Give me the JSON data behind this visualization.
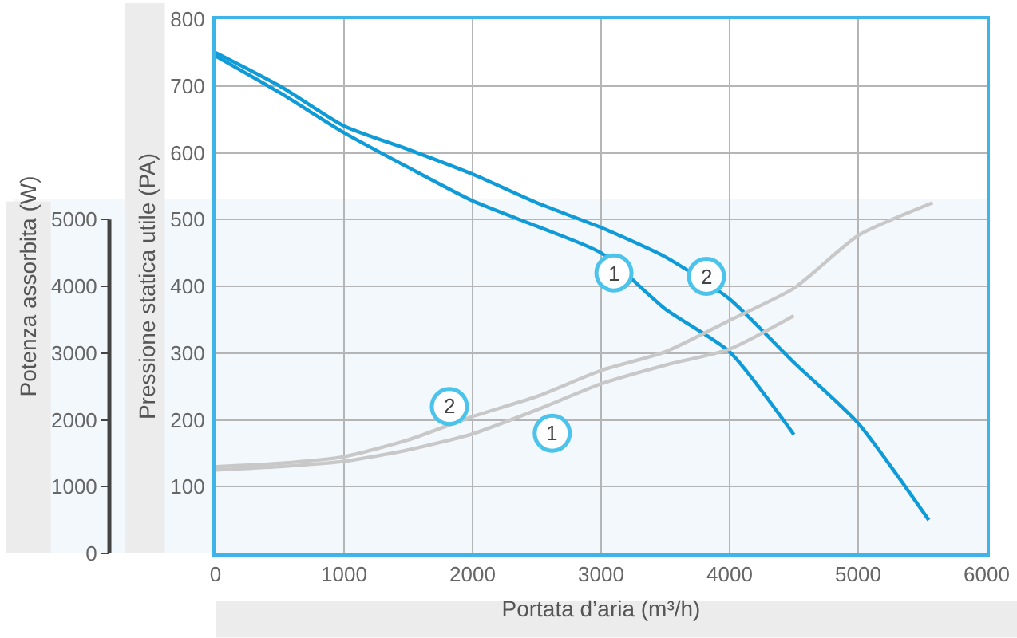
{
  "chart_data": {
    "type": "line",
    "xlabel": "Portata d’aria (m³/h)",
    "ylabel": "Pressione statica utile (PA)",
    "y2label": "Potenza assorbita (W)",
    "series": [
      {
        "color": "#0f9bd7",
        "x": [
          0,
          500,
          1000,
          1500,
          2000,
          2500,
          3000,
          3500,
          4000,
          4500
        ],
        "values": [
          745,
          690,
          630,
          578,
          528,
          490,
          450,
          366,
          302,
          178
        ]
      },
      {
        "color": "#0f9bd7",
        "x": [
          0,
          500,
          1000,
          1500,
          2000,
          2500,
          3000,
          3500,
          4000,
          4500,
          5000,
          5550
        ],
        "values": [
          750,
          700,
          640,
          605,
          568,
          525,
          488,
          444,
          381,
          286,
          195,
          50
        ]
      },
      {
        "color": "#c8c8c8",
        "axis": "y2",
        "x": [
          0,
          500,
          1000,
          1500,
          2000,
          2500,
          3000,
          3500,
          4000,
          4500,
          5000,
          5580
        ],
        "values": [
          1300,
          1350,
          1450,
          1700,
          2050,
          2350,
          2740,
          3020,
          3490,
          3970,
          4760,
          5250
        ]
      },
      {
        "color": "#c8c8c8",
        "axis": "y2",
        "x": [
          0,
          500,
          1000,
          1500,
          2000,
          2500,
          3000,
          3500,
          4000,
          4500
        ],
        "values": [
          1250,
          1300,
          1380,
          1550,
          1790,
          2150,
          2540,
          2820,
          3060,
          3560
        ]
      }
    ],
    "annotations": [
      {
        "text": "1",
        "x": 3100,
        "y": 420
      },
      {
        "text": "2",
        "x": 3820,
        "y": 415
      },
      {
        "text": "2",
        "x": 1820,
        "y": 220
      },
      {
        "text": "1",
        "x": 2620,
        "y": 180
      }
    ],
    "bands": [
      {
        "axis": "y2",
        "from": 0,
        "to": 5300,
        "color": "#f3f8fd"
      }
    ],
    "xlim": [
      0,
      6000
    ],
    "xticks": [
      0,
      1000,
      2000,
      3000,
      4000,
      5000,
      6000
    ],
    "ylim": [
      0,
      800
    ],
    "yticks": [
      100,
      200,
      300,
      400,
      500,
      600,
      700,
      800
    ],
    "y2lim": [
      0,
      8000
    ],
    "y2ticks": [
      0,
      1000,
      2000,
      3000,
      4000,
      5000
    ],
    "grid": true,
    "marker": "none",
    "line_style": "solid"
  }
}
